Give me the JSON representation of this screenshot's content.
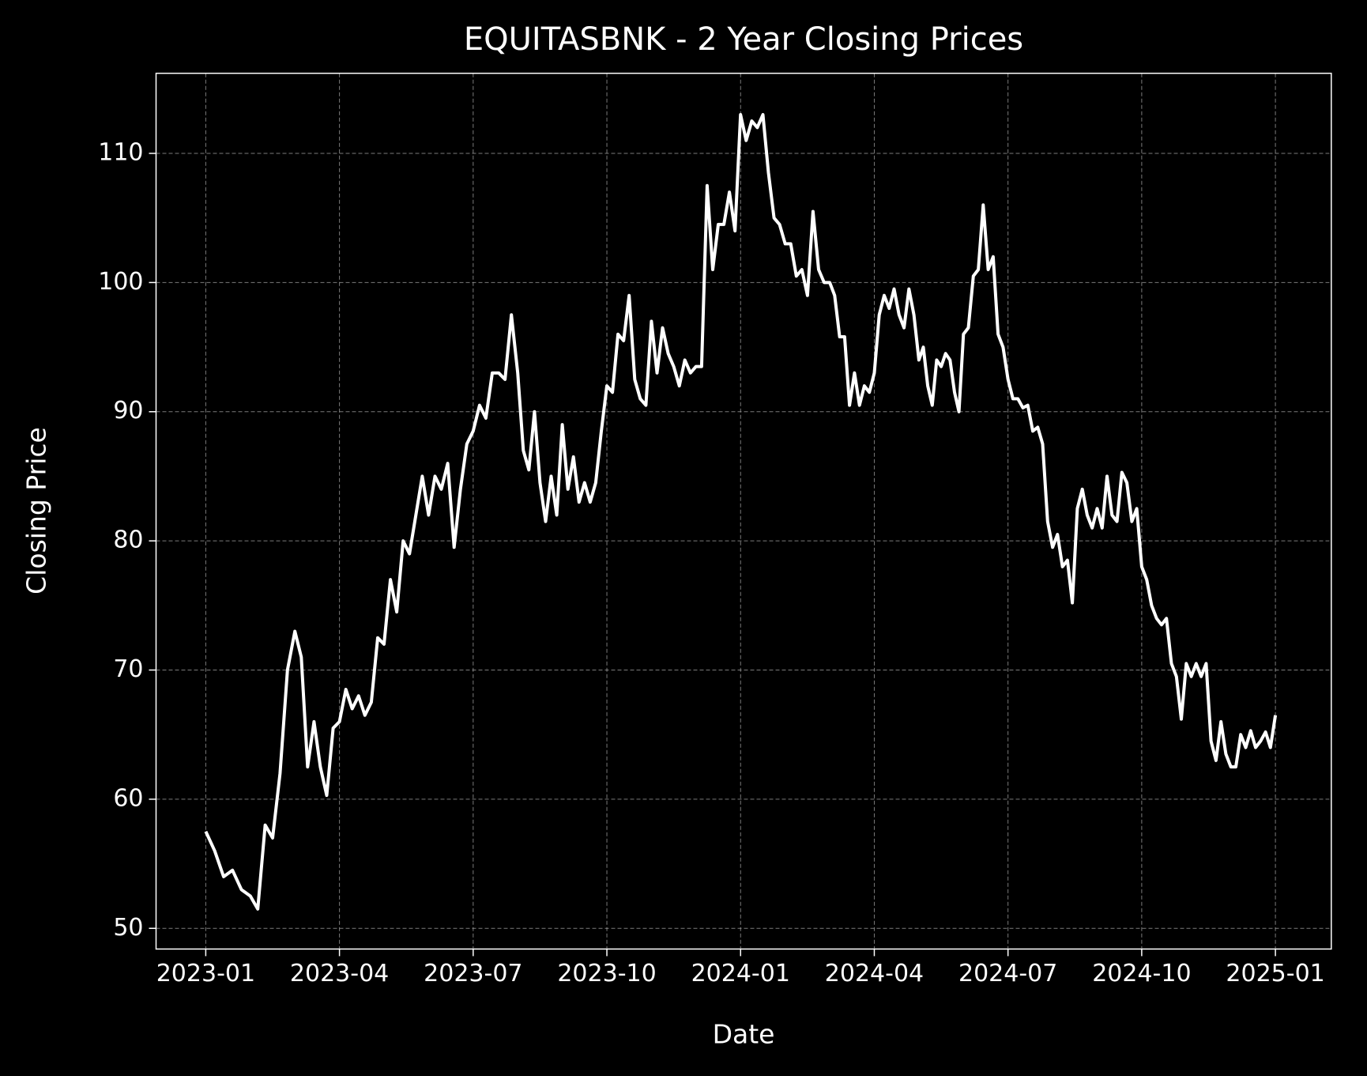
{
  "chart_data": {
    "type": "line",
    "title": "EQUITASBNK - 2 Year Closing Prices",
    "xlabel": "Date",
    "ylabel": "Closing Price",
    "color": "#ffffff",
    "grid": true,
    "ylim": [
      48.4,
      116.2
    ],
    "yticks": [
      50,
      60,
      70,
      80,
      90,
      100,
      110
    ],
    "xticks": [
      "2023-01",
      "2023-04",
      "2023-07",
      "2023-10",
      "2024-01",
      "2024-04",
      "2024-07",
      "2024-10",
      "2025-01"
    ],
    "x": [
      "2023-01",
      "2023-01",
      "2023-01",
      "2023-01",
      "2023-01",
      "2023-02",
      "2023-02",
      "2023-02",
      "2023-02",
      "2023-02",
      "2023-02",
      "2023-03",
      "2023-03",
      "2023-03",
      "2023-03",
      "2023-03",
      "2023-03",
      "2023-03",
      "2023-04",
      "2023-04",
      "2023-04",
      "2023-04",
      "2023-04",
      "2023-04",
      "2023-04",
      "2023-05",
      "2023-05",
      "2023-05",
      "2023-05",
      "2023-05",
      "2023-05",
      "2023-05",
      "2023-06",
      "2023-06",
      "2023-06",
      "2023-06",
      "2023-06",
      "2023-06",
      "2023-06",
      "2023-07",
      "2023-07",
      "2023-07",
      "2023-07",
      "2023-07",
      "2023-07",
      "2023-07",
      "2023-08",
      "2023-08",
      "2023-08",
      "2023-08",
      "2023-08",
      "2023-08",
      "2023-08",
      "2023-08",
      "2023-09",
      "2023-09",
      "2023-09",
      "2023-09",
      "2023-09",
      "2023-09",
      "2023-09",
      "2023-09",
      "2023-10",
      "2023-10",
      "2023-10",
      "2023-10",
      "2023-10",
      "2023-10",
      "2023-10",
      "2023-10",
      "2023-11",
      "2023-11",
      "2023-11",
      "2023-11",
      "2023-11",
      "2023-11",
      "2023-11",
      "2023-11",
      "2023-12",
      "2023-12",
      "2023-12",
      "2023-12",
      "2023-12",
      "2023-12",
      "2023-12",
      "2023-12",
      "2024-01",
      "2024-01",
      "2024-01",
      "2024-01",
      "2024-01",
      "2024-01",
      "2024-01",
      "2024-01",
      "2024-02",
      "2024-02",
      "2024-02",
      "2024-02",
      "2024-02",
      "2024-02",
      "2024-02",
      "2024-02",
      "2024-03",
      "2024-03",
      "2024-03",
      "2024-03",
      "2024-03",
      "2024-03",
      "2024-03",
      "2024-03",
      "2024-03",
      "2024-04",
      "2024-04",
      "2024-04",
      "2024-04",
      "2024-04",
      "2024-04",
      "2024-04",
      "2024-04",
      "2024-04",
      "2024-05",
      "2024-05",
      "2024-05",
      "2024-05",
      "2024-05",
      "2024-05",
      "2024-05",
      "2024-05",
      "2024-05",
      "2024-05",
      "2024-06",
      "2024-06",
      "2024-06",
      "2024-06",
      "2024-06",
      "2024-06",
      "2024-06",
      "2024-06",
      "2024-06",
      "2024-07",
      "2024-07",
      "2024-07",
      "2024-07",
      "2024-07",
      "2024-07",
      "2024-07",
      "2024-07",
      "2024-07",
      "2024-08",
      "2024-08",
      "2024-08",
      "2024-08",
      "2024-08",
      "2024-08",
      "2024-08",
      "2024-08",
      "2024-08",
      "2024-09",
      "2024-09",
      "2024-09",
      "2024-09",
      "2024-09",
      "2024-09",
      "2024-09",
      "2024-09",
      "2024-09",
      "2024-10",
      "2024-10",
      "2024-10",
      "2024-10",
      "2024-10",
      "2024-10",
      "2024-10",
      "2024-10",
      "2024-10",
      "2024-11",
      "2024-11",
      "2024-11",
      "2024-11",
      "2024-11",
      "2024-11",
      "2024-11",
      "2024-11",
      "2024-11",
      "2024-12",
      "2024-12",
      "2024-12",
      "2024-12",
      "2024-12",
      "2024-12",
      "2024-12",
      "2024-12",
      "2024-12",
      "2025-01"
    ],
    "values": [
      57.5,
      56,
      54,
      54.5,
      53,
      52.5,
      51.5,
      58,
      57,
      62,
      70,
      73,
      71,
      62.5,
      66,
      62.5,
      60.3,
      65.5,
      66,
      68.5,
      67,
      68,
      66.5,
      67.5,
      72.5,
      72,
      77,
      74.5,
      80,
      79,
      82,
      85,
      82,
      85,
      84,
      86,
      79.5,
      84,
      87.5,
      88.5,
      90.5,
      89.5,
      93,
      93,
      92.5,
      97.5,
      93,
      87,
      85.5,
      90,
      84.5,
      81.5,
      85,
      82,
      89,
      84,
      86.5,
      83,
      84.5,
      83,
      84.5,
      88.5,
      92,
      91.5,
      96,
      95.5,
      99,
      92.5,
      91,
      90.5,
      97,
      93,
      96.5,
      94.5,
      93.5,
      92,
      94,
      93,
      93.5,
      93.5,
      107.5,
      101,
      104.5,
      104.5,
      107,
      104,
      113,
      111,
      112.5,
      112,
      113,
      108.5,
      105,
      104.5,
      103,
      103,
      100.5,
      101,
      99,
      105.5,
      101,
      100,
      100,
      99,
      95.8,
      95.8,
      90.5,
      93,
      90.5,
      92,
      91.5,
      93,
      97.5,
      99,
      98,
      99.5,
      97.5,
      96.5,
      99.5,
      97.5,
      94,
      95,
      92,
      90.5,
      94,
      93.5,
      94.5,
      94,
      91.5,
      90,
      96,
      96.5,
      100.5,
      101,
      106,
      101,
      102,
      96,
      95,
      92.5,
      91,
      91,
      90.3,
      90.5,
      88.5,
      88.8,
      87.5,
      81.5,
      79.5,
      80.5,
      78,
      78.5,
      75.2,
      82.5,
      84,
      82,
      81,
      82.5,
      81,
      85,
      82,
      81.5,
      85.3,
      84.5,
      81.5,
      82.5,
      78,
      77,
      75,
      74,
      73.5,
      74,
      70.5,
      69.5,
      66.2,
      70.5,
      69.5,
      70.5,
      69.5,
      70.5,
      64.5,
      63,
      66,
      63.5,
      62.5,
      62.5,
      65,
      64,
      65.3,
      64,
      64.5,
      65.2,
      64,
      66.5
    ]
  }
}
